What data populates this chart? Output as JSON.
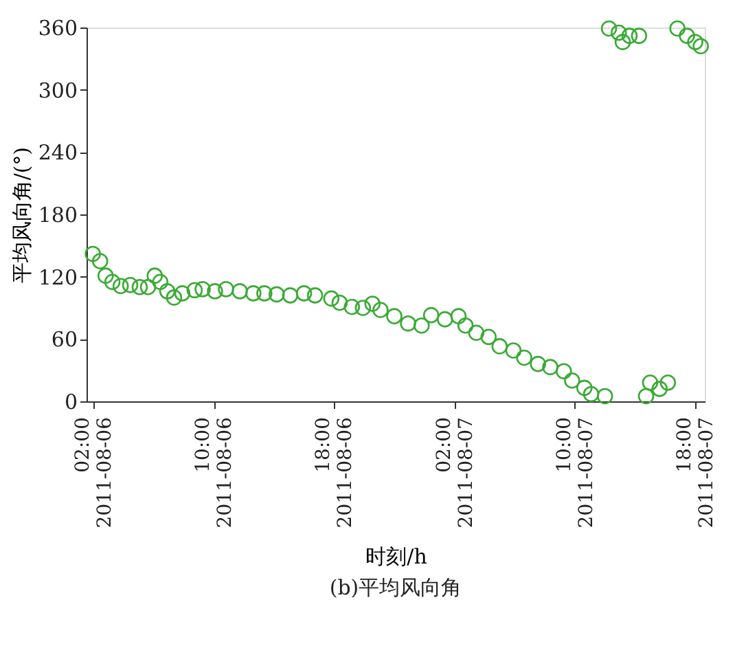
{
  "chart_data": {
    "type": "scatter",
    "title": "(b)平均风向角",
    "xlabel": "时刻/h",
    "ylabel": "平均风向角/(°)",
    "x": [
      "2011-08-06T01:58",
      "2011-08-06T02:27",
      "2011-08-06T02:49",
      "2011-08-06T03:16",
      "2011-08-06T03:49",
      "2011-08-06T04:27",
      "2011-08-06T05:05",
      "2011-08-06T05:38",
      "2011-08-06T06:05",
      "2011-08-06T06:27",
      "2011-08-06T06:55",
      "2011-08-06T07:22",
      "2011-08-06T07:55",
      "2011-08-06T08:44",
      "2011-08-06T09:16",
      "2011-08-06T10:05",
      "2011-08-06T10:49",
      "2011-08-06T11:44",
      "2011-08-06T12:38",
      "2011-08-06T13:22",
      "2011-08-06T14:11",
      "2011-08-06T15:05",
      "2011-08-06T16:00",
      "2011-08-06T16:44",
      "2011-08-06T17:49",
      "2011-08-06T18:22",
      "2011-08-06T19:11",
      "2011-08-06T19:55",
      "2011-08-06T20:33",
      "2011-08-06T21:05",
      "2011-08-06T22:00",
      "2011-08-06T22:55",
      "2011-08-06T23:49",
      "2011-08-07T00:27",
      "2011-08-07T01:22",
      "2011-08-07T02:16",
      "2011-08-07T02:44",
      "2011-08-07T03:27",
      "2011-08-07T04:16",
      "2011-08-07T05:00",
      "2011-08-07T05:55",
      "2011-08-07T06:38",
      "2011-08-07T07:33",
      "2011-08-07T08:22",
      "2011-08-07T09:16",
      "2011-08-07T09:49",
      "2011-08-07T10:38",
      "2011-08-07T11:05",
      "2011-08-07T12:00",
      "2011-08-07T12:16",
      "2011-08-07T12:55",
      "2011-08-07T13:11",
      "2011-08-07T13:38",
      "2011-08-07T14:16",
      "2011-08-07T14:44",
      "2011-08-07T15:00",
      "2011-08-07T15:38",
      "2011-08-07T16:11",
      "2011-08-07T16:49",
      "2011-08-07T17:27",
      "2011-08-07T18:00",
      "2011-08-07T18:22"
    ],
    "series": [
      {
        "color": "#3aaa35",
        "values": [
          142,
          135,
          121,
          115,
          111,
          112,
          110,
          110,
          121,
          115,
          106,
          100,
          104,
          107,
          108,
          106,
          108,
          106,
          104,
          104,
          103,
          102,
          104,
          102,
          99,
          95,
          91,
          90,
          94,
          88,
          82,
          75,
          73,
          83,
          79,
          82,
          73,
          66,
          62,
          53,
          49,
          42,
          36,
          33,
          29,
          20,
          13,
          7,
          5,
          359,
          355,
          346,
          352,
          352,
          5,
          18,
          12,
          18,
          359,
          352,
          346,
          342
        ]
      }
    ],
    "xlim": [
      "2011-08-06T01:33",
      "2011-08-07T18:38"
    ],
    "xticks": [
      {
        "value": "2011-08-06T02:00",
        "label": "02:00 2011-08-06"
      },
      {
        "value": "2011-08-06T10:00",
        "label": "10:00 2011-08-06"
      },
      {
        "value": "2011-08-06T18:00",
        "label": "18:00 2011-08-06"
      },
      {
        "value": "2011-08-07T02:00",
        "label": "02:00 2011-08-07"
      },
      {
        "value": "2011-08-07T10:00",
        "label": "10:00 2011-08-07"
      },
      {
        "value": "2011-08-07T18:00",
        "label": "18:00 2011-08-07"
      }
    ],
    "ylim": [
      0,
      360
    ],
    "yticks": [
      0,
      60,
      120,
      180,
      240,
      300,
      360
    ],
    "grid": false,
    "marker": "circle"
  }
}
